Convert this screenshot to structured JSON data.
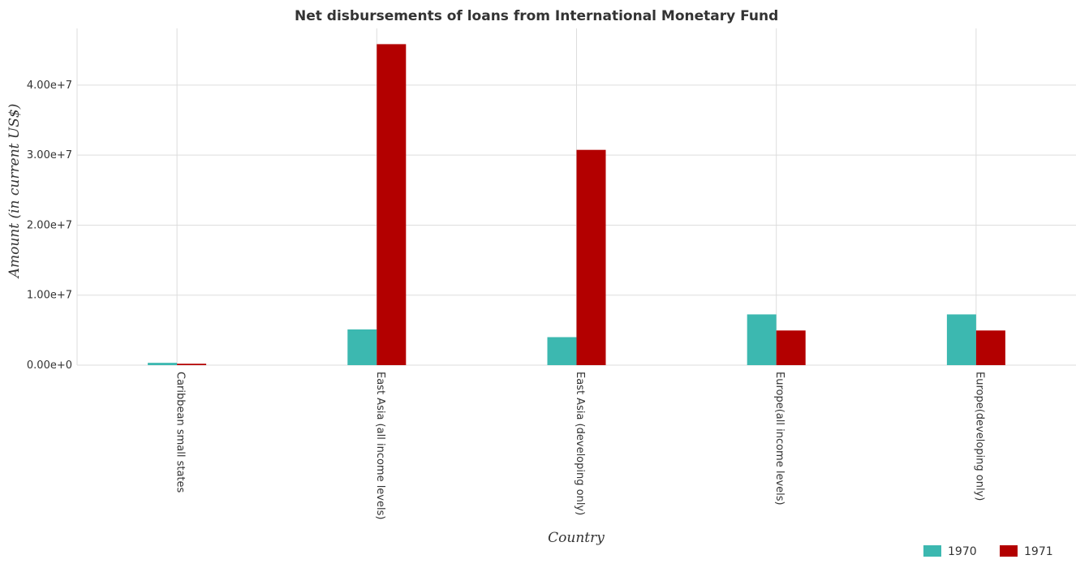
{
  "title": "Net disbursements of loans from International Monetary Fund",
  "chart_data": {
    "type": "bar",
    "title": "Net disbursements of loans from International Monetary Fund",
    "xlabel": "Country",
    "ylabel": "Amount (in current US$)",
    "categories": [
      "Caribbean small states",
      "East Asia (all income levels)",
      "East Asia (developing only)",
      "Europe(all income levels)",
      "Europe(developing only)"
    ],
    "series": [
      {
        "name": "1970",
        "color": "#3cb8b0",
        "values": [
          330000,
          5100000,
          4000000,
          7250000,
          7250000
        ]
      },
      {
        "name": "1971",
        "color": "#b30000",
        "values": [
          200000,
          45850000,
          30750000,
          4950000,
          4950000
        ]
      }
    ],
    "yticks": [
      0,
      10000000,
      20000000,
      30000000,
      40000000
    ],
    "ytick_labels": [
      "0.00e+0",
      "1.00e+7",
      "2.00e+7",
      "3.00e+7",
      "4.00e+7"
    ],
    "ylim": [
      0,
      48100000
    ],
    "grid": true,
    "legend_position": "bottom-right"
  }
}
